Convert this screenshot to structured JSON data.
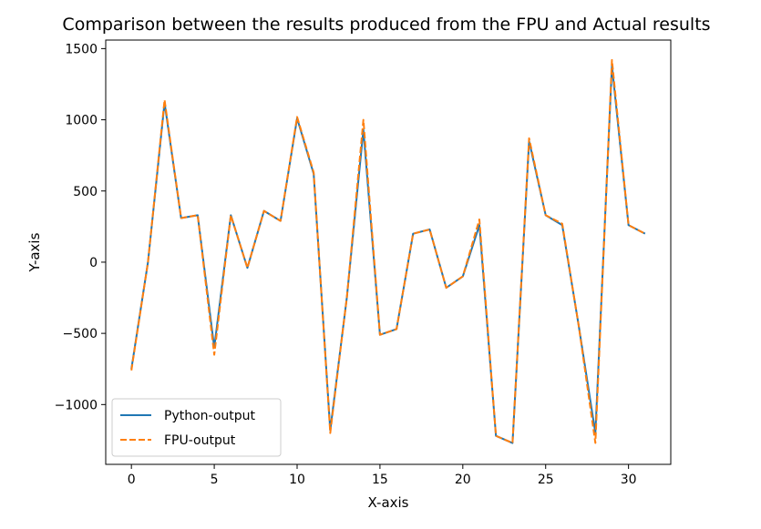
{
  "chart_data": {
    "type": "line",
    "title": "Comparison between the results produced from the FPU and Actual results",
    "xlabel": "X-axis",
    "ylabel": "Y-axis",
    "xlim": [
      -1.55,
      32.55
    ],
    "ylim": [
      -1420,
      1560
    ],
    "xticks": [
      0,
      5,
      10,
      15,
      20,
      25,
      30
    ],
    "xtick_labels": [
      "0",
      "5",
      "10",
      "15",
      "20",
      "25",
      "30"
    ],
    "yticks": [
      -1000,
      -500,
      0,
      500,
      1000,
      1500
    ],
    "ytick_labels": [
      "−1000",
      "−500",
      "0",
      "500",
      "1000",
      "1500"
    ],
    "grid": false,
    "legend_position": "lower-left",
    "x": [
      0,
      1,
      2,
      3,
      4,
      5,
      6,
      7,
      8,
      9,
      10,
      11,
      12,
      13,
      14,
      15,
      16,
      17,
      18,
      19,
      20,
      21,
      22,
      23,
      24,
      25,
      26,
      27,
      28,
      29,
      30,
      31
    ],
    "series": [
      {
        "name": "Python-output",
        "color": "#1f77b4",
        "style": "solid",
        "values": [
          -750,
          0,
          1120,
          310,
          330,
          -600,
          330,
          -40,
          360,
          290,
          1010,
          620,
          -1180,
          -250,
          930,
          -510,
          -470,
          200,
          230,
          -180,
          -100,
          260,
          -1220,
          -1270,
          850,
          330,
          260,
          -450,
          -1200,
          1380,
          260,
          200
        ]
      },
      {
        "name": "FPU-output",
        "color": "#ff7f0e",
        "style": "dashed",
        "values": [
          -760,
          0,
          1140,
          310,
          330,
          -650,
          330,
          -40,
          360,
          290,
          1020,
          630,
          -1200,
          -250,
          1000,
          -510,
          -470,
          200,
          230,
          -180,
          -100,
          300,
          -1220,
          -1270,
          870,
          330,
          270,
          -450,
          -1270,
          1420,
          260,
          200
        ]
      }
    ]
  }
}
